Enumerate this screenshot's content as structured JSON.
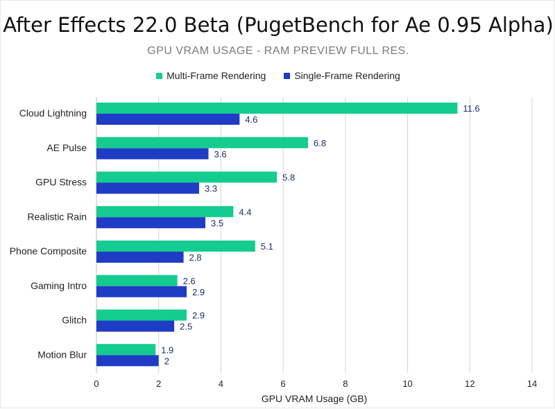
{
  "chart_data": {
    "type": "bar",
    "orientation": "horizontal",
    "title": "After Effects 22.0 Beta (PugetBench for Ae 0.95 Alpha)",
    "subtitle": "GPU VRAM USAGE - RAM PREVIEW FULL RES.",
    "xlabel": "GPU VRAM Usage (GB)",
    "ylabel": "",
    "xlim": [
      0,
      14
    ],
    "xticks": [
      0,
      2,
      4,
      6,
      8,
      10,
      12,
      14
    ],
    "grid": true,
    "legend_position": "top",
    "categories": [
      "Cloud Lightning",
      "AE Pulse",
      "GPU Stress",
      "Realistic Rain",
      "Phone Composite",
      "Gaming Intro",
      "Glitch",
      "Motion Blur"
    ],
    "series": [
      {
        "name": "Multi-Frame Rendering",
        "color": "#14cc8f",
        "values": [
          11.6,
          6.8,
          5.8,
          4.4,
          5.1,
          2.6,
          2.9,
          1.9
        ]
      },
      {
        "name": "Single-Frame Rendering",
        "color": "#1f3cc4",
        "values": [
          4.6,
          3.6,
          3.3,
          3.5,
          2.8,
          2.9,
          2.5,
          2
        ]
      }
    ]
  }
}
